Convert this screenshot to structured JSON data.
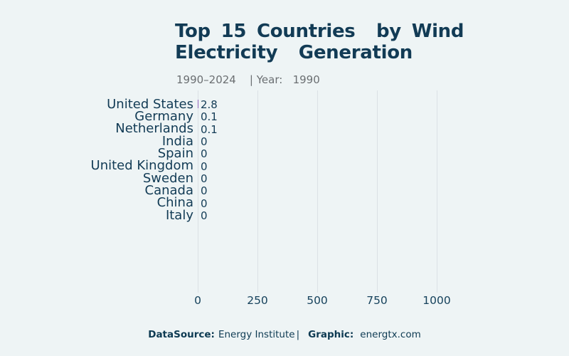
{
  "title": {
    "line1": "Top 15 Countries  by Wind",
    "line2": "Electricity  Generation"
  },
  "subtitle": "1990–2024    | Year:   1990",
  "footer": {
    "datasource_label": "DataSource:",
    "datasource_value": "Energy Institute",
    "separator": "|",
    "graphic_label": "Graphic:",
    "graphic_value": "energtx.com"
  },
  "colors": {
    "background": "#eef4f5",
    "title_text": "#123b55",
    "subtitle_text": "#6b6f72",
    "label_text": "#123b55",
    "tick_text": "#16425c",
    "gridline": "#dbe1e5",
    "bar": "#9467bd",
    "footer_text": "#0d3a52"
  },
  "chart_data": {
    "type": "bar",
    "orientation": "horizontal",
    "title": "Top 15 Countries by Wind Electricity Generation",
    "subtitle_range": "1990–2024",
    "year": "1990",
    "categories": [
      "United States",
      "Germany",
      "Netherlands",
      "India",
      "Spain",
      "United Kingdom",
      "Sweden",
      "Canada",
      "China",
      "Italy"
    ],
    "values": [
      2.8,
      0.1,
      0.1,
      0,
      0,
      0,
      0,
      0,
      0,
      0
    ],
    "value_labels": [
      "2.8",
      "0.1",
      "0.1",
      "0",
      "0",
      "0",
      "0",
      "0",
      "0",
      "0"
    ],
    "x_ticks": [
      0,
      250,
      500,
      750,
      1000
    ],
    "x_tick_labels": [
      "0",
      "250",
      "500",
      "750",
      "1000"
    ],
    "xlim": [
      0,
      1000
    ],
    "grid": true,
    "legend": false,
    "bar_color": "#9467bd"
  }
}
